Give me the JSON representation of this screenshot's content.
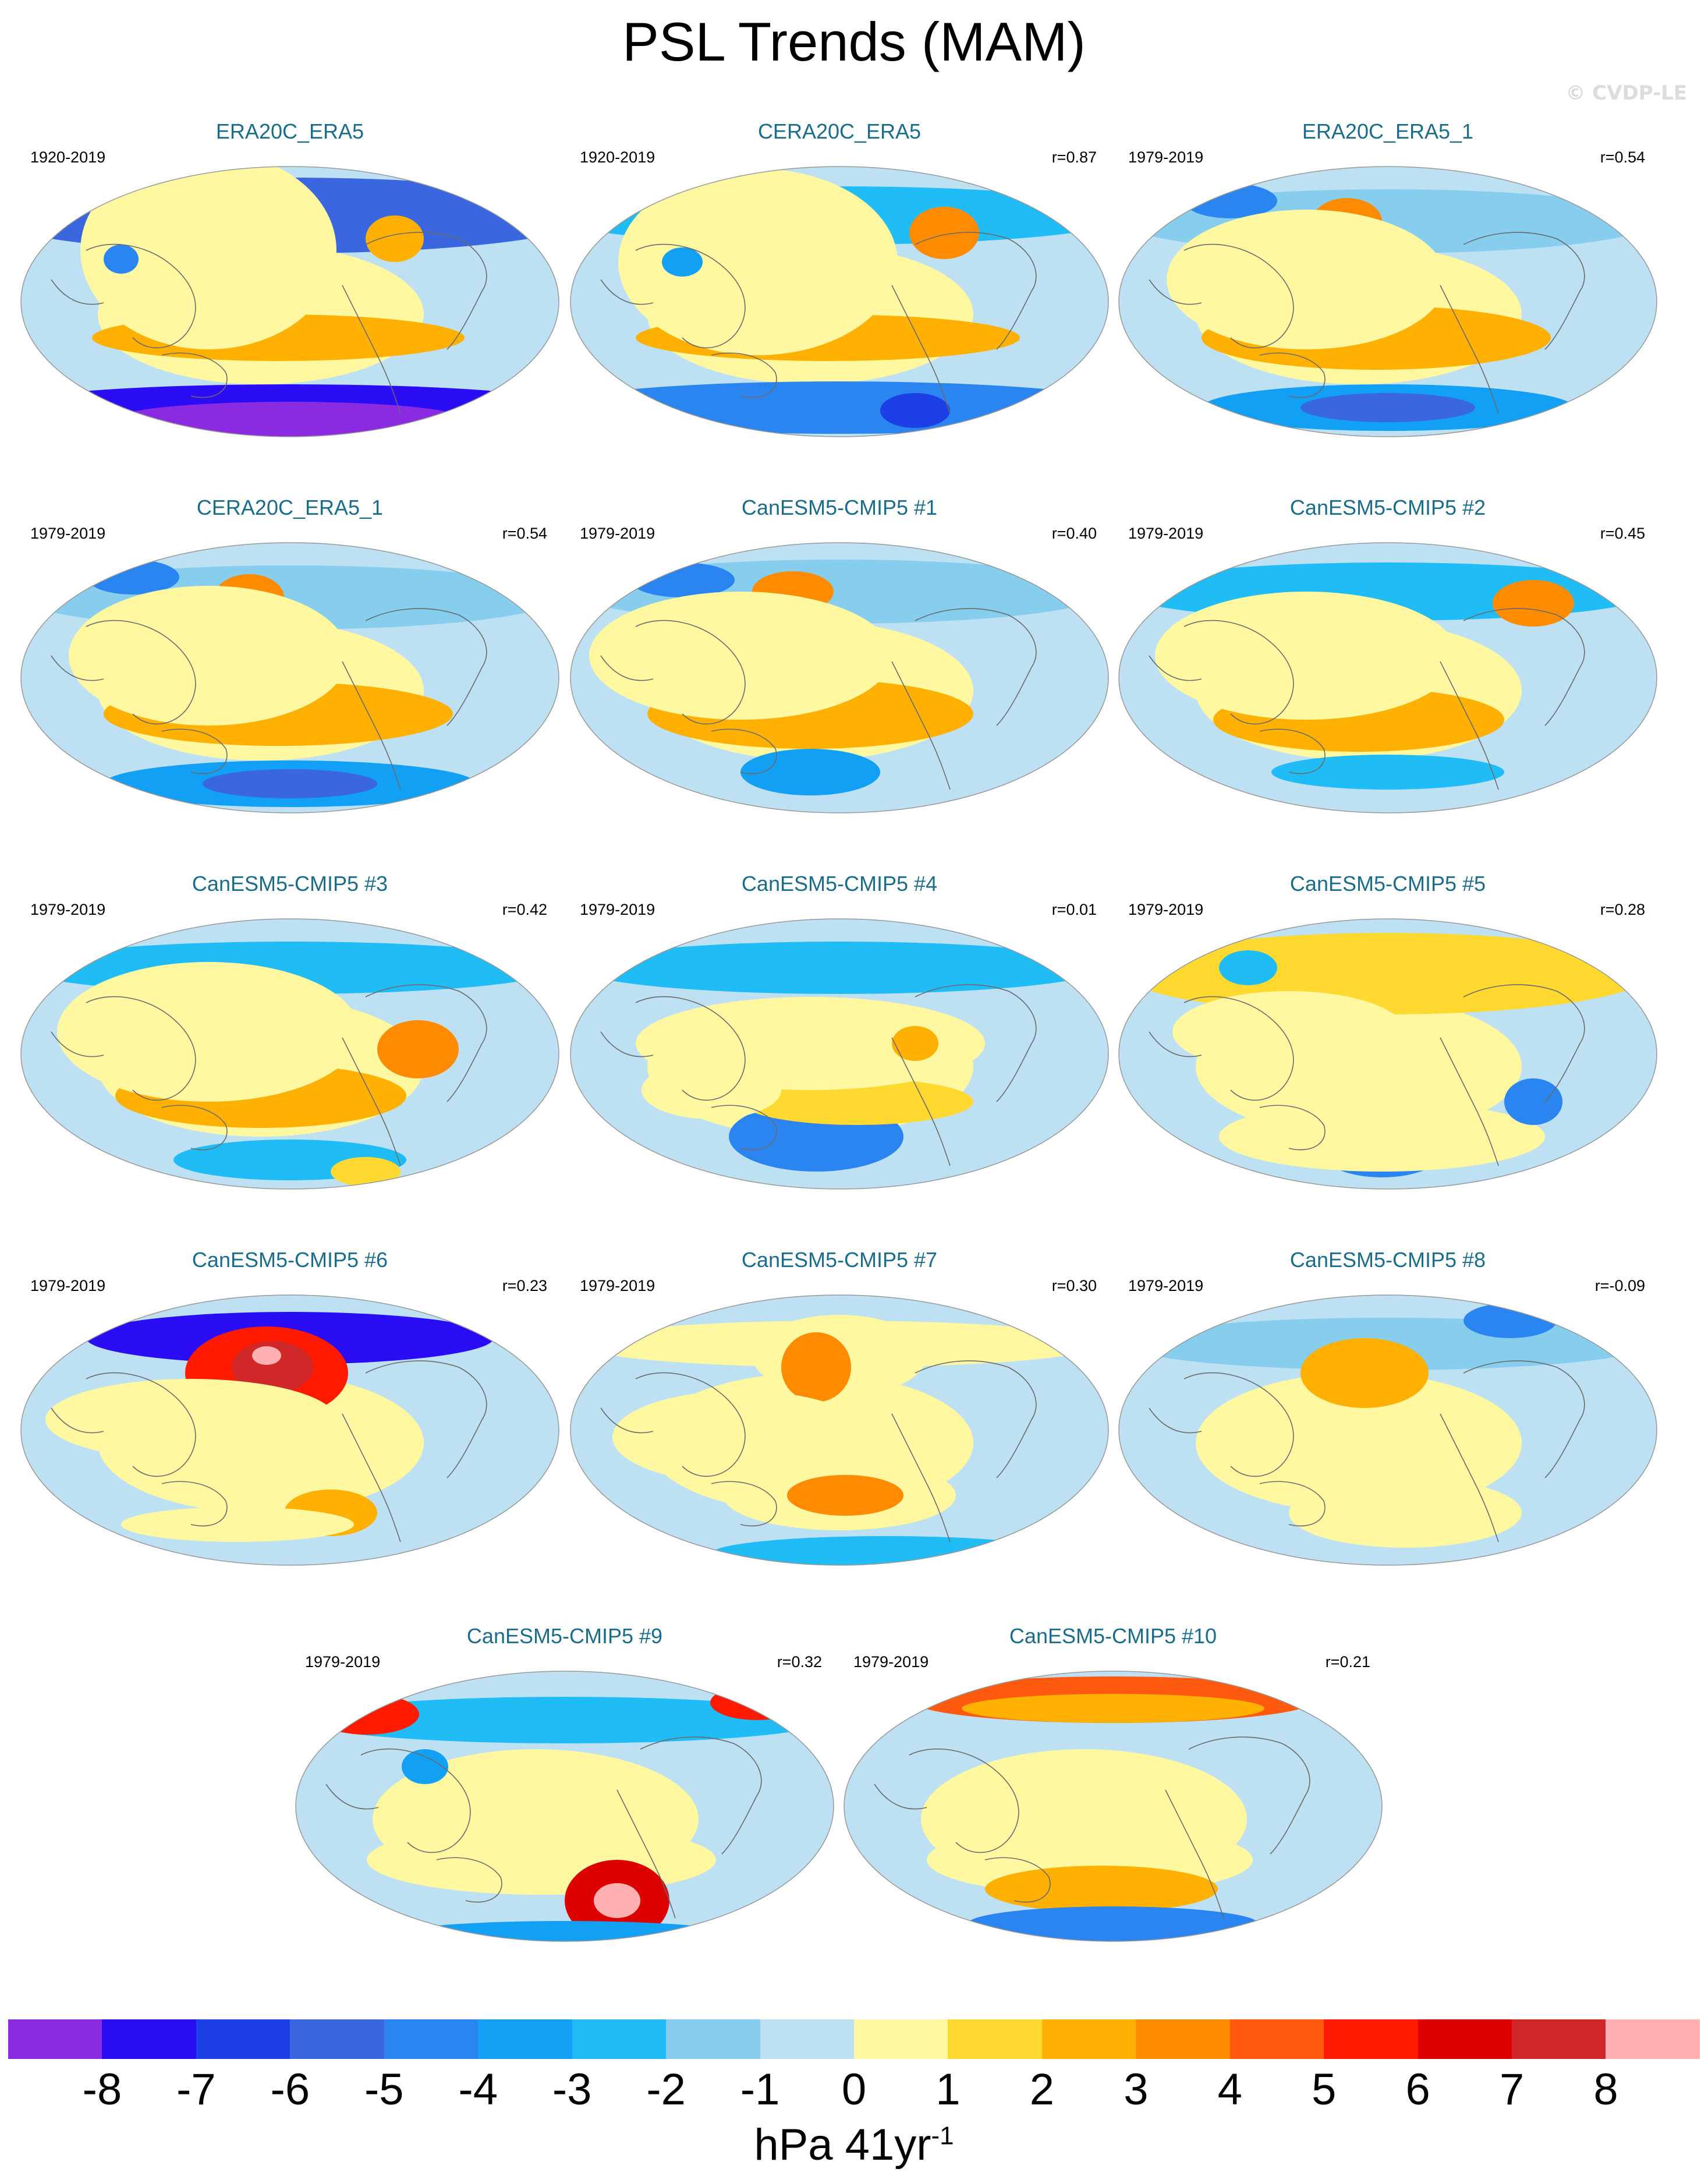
{
  "figure": {
    "title": "PSL Trends (MAM)",
    "watermark": "© CVDP-LE"
  },
  "panels": [
    {
      "title": "ERA20C_ERA5",
      "period": "1920-2019",
      "corr": "",
      "variant": 0
    },
    {
      "title": "CERA20C_ERA5",
      "period": "1920-2019",
      "corr": "r=0.87",
      "variant": 1
    },
    {
      "title": "ERA20C_ERA5_1",
      "period": "1979-2019",
      "corr": "r=0.54",
      "variant": 2
    },
    {
      "title": "CERA20C_ERA5_1",
      "period": "1979-2019",
      "corr": "r=0.54",
      "variant": 2
    },
    {
      "title": "CanESM5-CMIP5 #1",
      "period": "1979-2019",
      "corr": "r=0.40",
      "variant": 3
    },
    {
      "title": "CanESM5-CMIP5 #2",
      "period": "1979-2019",
      "corr": "r=0.45",
      "variant": 4
    },
    {
      "title": "CanESM5-CMIP5 #3",
      "period": "1979-2019",
      "corr": "r=0.42",
      "variant": 5
    },
    {
      "title": "CanESM5-CMIP5 #4",
      "period": "1979-2019",
      "corr": "r=0.01",
      "variant": 6
    },
    {
      "title": "CanESM5-CMIP5 #5",
      "period": "1979-2019",
      "corr": "r=0.28",
      "variant": 7
    },
    {
      "title": "CanESM5-CMIP5 #6",
      "period": "1979-2019",
      "corr": "r=0.23",
      "variant": 8
    },
    {
      "title": "CanESM5-CMIP5 #7",
      "period": "1979-2019",
      "corr": "r=0.30",
      "variant": 9
    },
    {
      "title": "CanESM5-CMIP5 #8",
      "period": "1979-2019",
      "corr": "r=-0.09",
      "variant": 10
    },
    {
      "title": "CanESM5-CMIP5 #9",
      "period": "1979-2019",
      "corr": "r=0.32",
      "variant": 11
    },
    {
      "title": "CanESM5-CMIP5 #10",
      "period": "1979-2019",
      "corr": "r=0.21",
      "variant": 12
    }
  ],
  "colorbar": {
    "colors": [
      "#8a2be2",
      "#2a0cf5",
      "#1c3fe6",
      "#3a66e0",
      "#2a85f0",
      "#12a0f5",
      "#20bcf5",
      "#86cdee",
      "#bde0f3",
      "#fff8a0",
      "#ffd830",
      "#ffb000",
      "#ff8c00",
      "#ff5a10",
      "#ff1a00",
      "#dd0000",
      "#d02828",
      "#ffb0b0"
    ],
    "tick_labels": [
      "-8",
      "-7",
      "-6",
      "-5",
      "-4",
      "-3",
      "-2",
      "-1",
      "0",
      "1",
      "2",
      "3",
      "4",
      "5",
      "6",
      "7",
      "8"
    ],
    "units": "hPa 41yr",
    "units_exponent": "-1"
  }
}
